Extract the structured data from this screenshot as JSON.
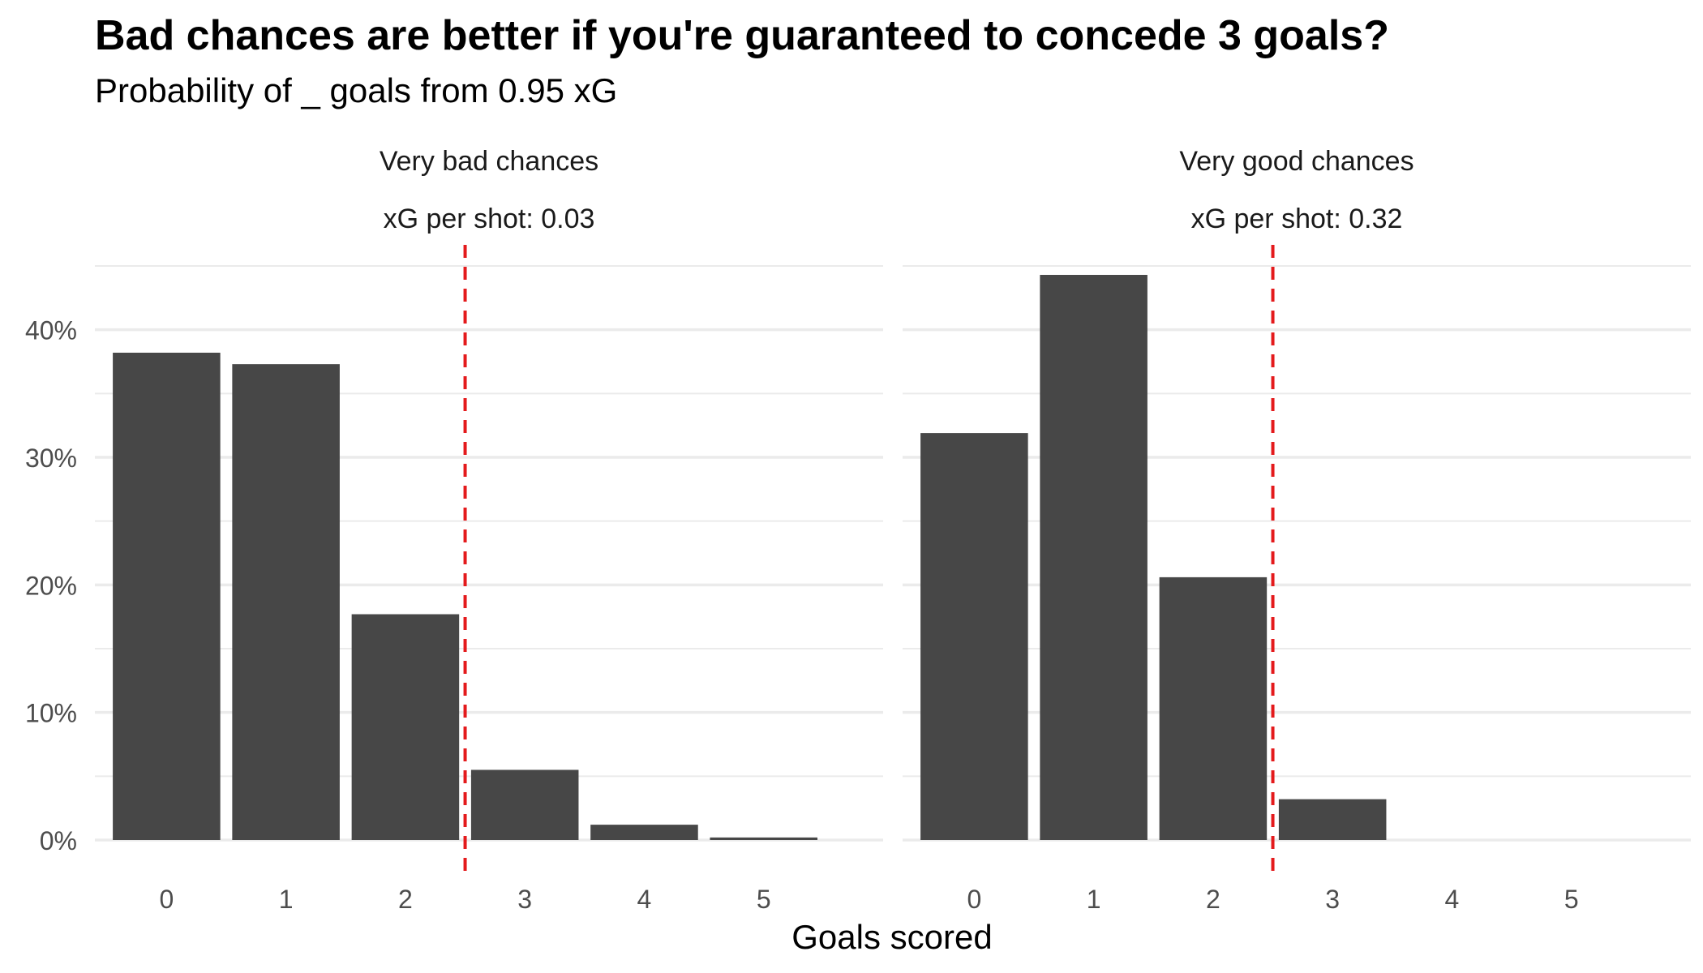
{
  "title": "Bad chances are better if you're guaranteed to concede 3 goals?",
  "subtitle": "Probability of _ goals from 0.95 xG",
  "colors": {
    "bar": "#474747",
    "threshold_line": "#e41a1c",
    "grid": "#ebebeb",
    "text": "#4d4d4d"
  },
  "chart_data": {
    "type": "bar",
    "xlabel": "Goals scored",
    "ylabel": "",
    "ylim": [
      0,
      0.45
    ],
    "y_ticks": [
      0,
      0.1,
      0.2,
      0.3,
      0.4
    ],
    "y_tick_labels": [
      "0%",
      "10%",
      "20%",
      "30%",
      "40%"
    ],
    "categories": [
      "0",
      "1",
      "2",
      "3",
      "4",
      "5"
    ],
    "threshold_x": 2.5,
    "panels": [
      {
        "strip_line1": "Very bad chances",
        "strip_line2": "xG per shot: 0.03",
        "values": [
          0.382,
          0.373,
          0.177,
          0.055,
          0.012,
          0.002
        ]
      },
      {
        "strip_line1": "Very good chances",
        "strip_line2": "xG per shot: 0.32",
        "values": [
          0.319,
          0.443,
          0.206,
          0.032,
          0,
          0
        ]
      }
    ]
  }
}
